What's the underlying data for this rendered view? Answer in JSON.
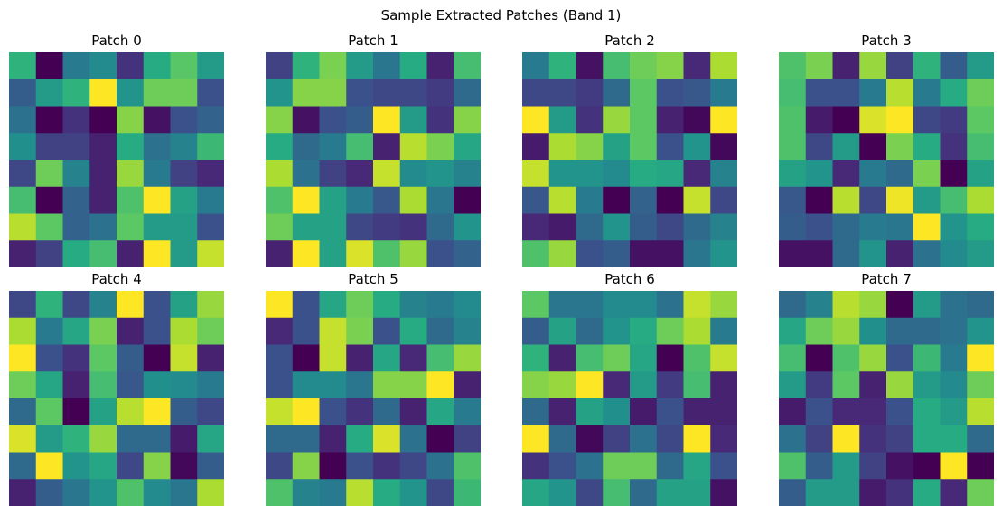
{
  "chart_data": {
    "type": "heatmap",
    "title": "Sample Extracted Patches (Band 1)",
    "colormap": "viridis",
    "vmin": 0,
    "vmax": 1,
    "axes_visible": false,
    "panels": [
      {
        "title": "Patch 0",
        "values": [
          [
            0.65,
            0.0,
            0.42,
            0.48,
            0.15,
            0.62,
            0.74,
            0.55
          ],
          [
            0.3,
            0.55,
            0.65,
            1.0,
            0.52,
            0.78,
            0.78,
            0.25
          ],
          [
            0.38,
            0.0,
            0.15,
            0.0,
            0.82,
            0.05,
            0.25,
            0.32
          ],
          [
            0.5,
            0.2,
            0.2,
            0.1,
            0.62,
            0.38,
            0.45,
            0.68
          ],
          [
            0.22,
            0.78,
            0.45,
            0.1,
            0.85,
            0.42,
            0.2,
            0.12
          ],
          [
            0.7,
            0.0,
            0.32,
            0.1,
            0.72,
            1.0,
            0.58,
            0.42
          ],
          [
            0.9,
            0.75,
            0.32,
            0.38,
            0.75,
            0.55,
            0.55,
            0.25
          ],
          [
            0.1,
            0.2,
            0.62,
            0.7,
            0.1,
            1.0,
            0.55,
            0.92
          ]
        ]
      },
      {
        "title": "Patch 1",
        "values": [
          [
            0.2,
            0.65,
            0.8,
            0.55,
            0.4,
            0.62,
            0.1,
            0.7
          ],
          [
            0.52,
            0.82,
            0.82,
            0.25,
            0.22,
            0.22,
            0.18,
            0.35
          ],
          [
            0.82,
            0.05,
            0.25,
            0.3,
            1.0,
            0.55,
            0.15,
            0.82
          ],
          [
            0.62,
            0.35,
            0.42,
            0.7,
            0.1,
            0.9,
            0.8,
            0.6
          ],
          [
            0.88,
            0.38,
            0.2,
            0.12,
            0.92,
            0.48,
            0.52,
            0.45
          ],
          [
            0.72,
            1.0,
            0.58,
            0.42,
            0.28,
            0.88,
            0.4,
            0.0
          ],
          [
            0.78,
            0.58,
            0.58,
            0.22,
            0.18,
            0.15,
            0.35,
            0.52
          ],
          [
            0.1,
            1.0,
            0.58,
            0.95,
            0.72,
            0.85,
            0.25,
            0.32
          ]
        ]
      },
      {
        "title": "Patch 2",
        "values": [
          [
            0.42,
            0.65,
            0.05,
            0.7,
            0.78,
            0.82,
            0.12,
            0.88
          ],
          [
            0.22,
            0.22,
            0.18,
            0.35,
            0.75,
            0.25,
            0.28,
            0.42
          ],
          [
            1.0,
            0.55,
            0.15,
            0.85,
            0.75,
            0.1,
            0.02,
            1.0
          ],
          [
            0.08,
            0.88,
            0.82,
            0.58,
            0.75,
            0.25,
            0.52,
            0.02
          ],
          [
            0.92,
            0.52,
            0.52,
            0.48,
            0.62,
            0.6,
            0.12,
            0.45
          ],
          [
            0.28,
            0.9,
            0.42,
            0.0,
            0.32,
            0.0,
            0.92,
            0.22
          ],
          [
            0.12,
            0.08,
            0.35,
            0.52,
            0.3,
            0.22,
            0.35,
            0.45
          ],
          [
            0.72,
            0.85,
            0.25,
            0.3,
            0.05,
            0.05,
            0.4,
            0.52
          ]
        ]
      },
      {
        "title": "Patch 3",
        "values": [
          [
            0.72,
            0.8,
            0.1,
            0.85,
            0.2,
            0.65,
            0.3,
            0.55
          ],
          [
            0.7,
            0.25,
            0.25,
            0.42,
            0.9,
            0.42,
            0.62,
            0.78
          ],
          [
            0.72,
            0.08,
            0.0,
            0.95,
            1.0,
            0.22,
            0.18,
            0.75
          ],
          [
            0.72,
            0.22,
            0.55,
            0.0,
            0.8,
            0.62,
            0.15,
            0.7
          ],
          [
            0.58,
            0.52,
            0.12,
            0.42,
            0.35,
            0.8,
            0.0,
            0.58
          ],
          [
            0.28,
            0.0,
            0.9,
            0.22,
            0.98,
            0.55,
            0.7,
            0.88
          ],
          [
            0.3,
            0.25,
            0.35,
            0.42,
            0.4,
            1.0,
            0.52,
            0.62
          ],
          [
            0.05,
            0.05,
            0.35,
            0.52,
            0.1,
            0.38,
            0.48,
            0.55
          ]
        ]
      },
      {
        "title": "Patch 4",
        "values": [
          [
            0.22,
            0.65,
            0.22,
            0.45,
            1.0,
            0.25,
            0.58,
            0.85
          ],
          [
            0.88,
            0.42,
            0.6,
            0.8,
            0.1,
            0.25,
            0.88,
            0.78
          ],
          [
            1.0,
            0.25,
            0.15,
            0.75,
            0.3,
            0.0,
            0.92,
            0.1
          ],
          [
            0.78,
            0.6,
            0.1,
            0.7,
            0.28,
            0.5,
            0.48,
            0.42
          ],
          [
            0.35,
            0.75,
            0.0,
            0.58,
            0.9,
            1.0,
            0.3,
            0.22
          ],
          [
            0.95,
            0.55,
            0.65,
            0.85,
            0.35,
            0.35,
            0.08,
            0.6
          ],
          [
            0.35,
            1.0,
            0.52,
            0.6,
            0.22,
            0.82,
            0.02,
            0.3
          ],
          [
            0.1,
            0.3,
            0.4,
            0.52,
            0.72,
            0.48,
            0.4,
            0.88
          ]
        ]
      },
      {
        "title": "Patch 5",
        "values": [
          [
            1.0,
            0.25,
            0.6,
            0.78,
            0.62,
            0.45,
            0.42,
            0.48
          ],
          [
            0.12,
            0.25,
            0.92,
            0.8,
            0.25,
            0.62,
            0.35,
            0.45
          ],
          [
            0.25,
            0.0,
            0.92,
            0.1,
            0.6,
            0.12,
            0.7,
            0.85
          ],
          [
            0.25,
            0.48,
            0.48,
            0.4,
            0.82,
            0.82,
            1.0,
            0.1
          ],
          [
            0.92,
            1.0,
            0.25,
            0.15,
            0.35,
            0.1,
            0.6,
            0.42
          ],
          [
            0.35,
            0.35,
            0.1,
            0.62,
            0.95,
            0.38,
            0.0,
            0.2
          ],
          [
            0.22,
            0.82,
            0.0,
            0.25,
            0.15,
            0.22,
            0.38,
            0.72
          ],
          [
            0.72,
            0.45,
            0.42,
            0.9,
            0.62,
            0.52,
            0.22,
            0.68
          ]
        ]
      },
      {
        "title": "Patch 6",
        "values": [
          [
            0.75,
            0.4,
            0.4,
            0.48,
            0.48,
            0.38,
            0.92,
            0.85
          ],
          [
            0.3,
            0.58,
            0.35,
            0.52,
            0.62,
            0.78,
            0.88,
            0.42
          ],
          [
            0.65,
            0.1,
            0.7,
            0.78,
            0.6,
            0.0,
            0.72,
            0.92
          ],
          [
            0.82,
            0.85,
            1.0,
            0.12,
            0.55,
            0.18,
            0.7,
            0.1
          ],
          [
            0.35,
            0.1,
            0.58,
            0.5,
            0.08,
            0.25,
            0.1,
            0.1
          ],
          [
            1.0,
            0.35,
            0.02,
            0.2,
            0.38,
            0.22,
            1.0,
            0.12
          ],
          [
            0.15,
            0.25,
            0.38,
            0.78,
            0.78,
            0.35,
            0.6,
            0.25
          ],
          [
            0.6,
            0.52,
            0.22,
            0.7,
            0.35,
            0.58,
            0.58,
            0.05
          ]
        ]
      },
      {
        "title": "Patch 7",
        "values": [
          [
            0.35,
            0.45,
            0.9,
            0.85,
            0.0,
            0.55,
            0.38,
            0.35
          ],
          [
            0.6,
            0.78,
            0.85,
            0.5,
            0.35,
            0.35,
            0.38,
            0.52
          ],
          [
            0.7,
            0.0,
            0.72,
            0.85,
            0.25,
            0.68,
            0.42,
            1.0
          ],
          [
            0.55,
            0.18,
            0.75,
            0.1,
            0.85,
            0.55,
            0.48,
            0.78
          ],
          [
            0.08,
            0.25,
            0.12,
            0.12,
            0.25,
            0.62,
            0.55,
            0.9
          ],
          [
            0.38,
            0.2,
            1.0,
            0.15,
            0.2,
            0.62,
            0.62,
            0.35
          ],
          [
            0.72,
            0.3,
            0.55,
            0.2,
            0.05,
            0.0,
            1.0,
            0.0
          ],
          [
            0.3,
            0.55,
            0.55,
            0.08,
            0.15,
            0.62,
            0.12,
            0.78
          ]
        ]
      }
    ]
  }
}
